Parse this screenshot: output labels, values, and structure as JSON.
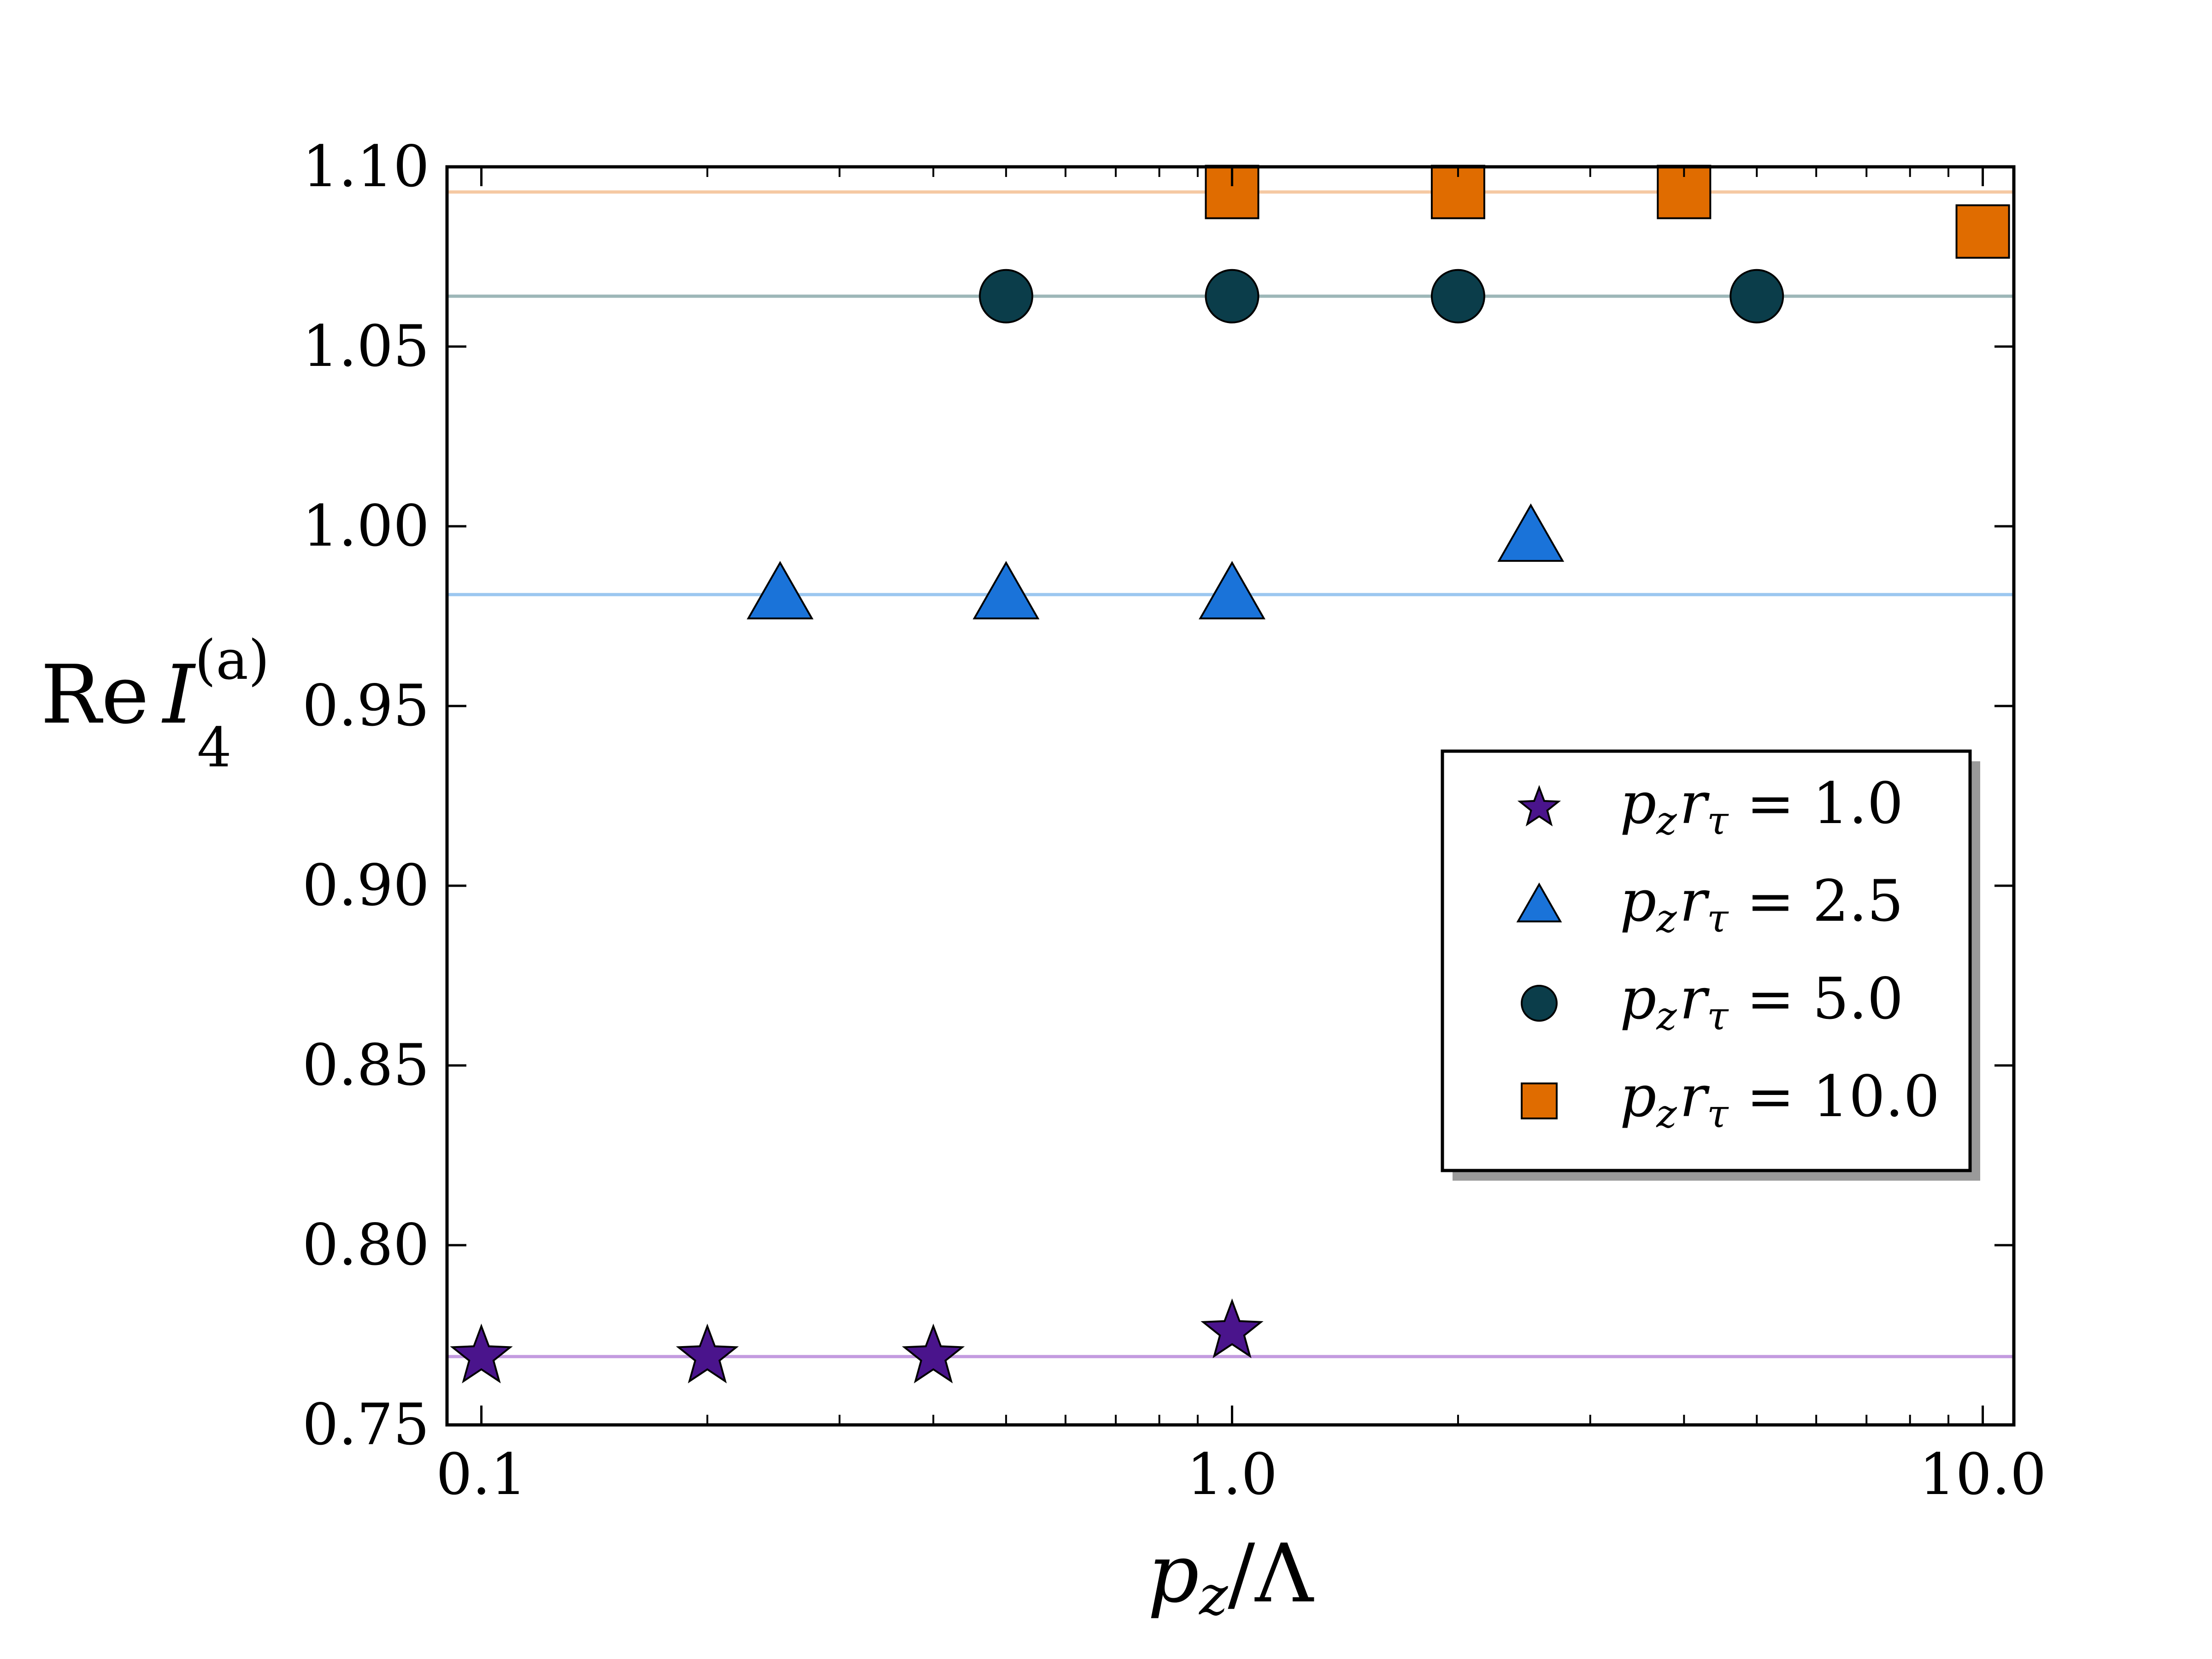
{
  "chart_data": {
    "type": "scatter",
    "x_scale": "log",
    "xlim": [
      0.09,
      11
    ],
    "ylim": [
      0.75,
      1.1
    ],
    "xlabel": {
      "main": "p",
      "sub": "z",
      "rest": "/Λ"
    },
    "ylabel": {
      "prefix": "Re",
      "main": "I",
      "sub": "4",
      "sup": "(a)"
    },
    "x_ticks": [
      {
        "value": 0.1,
        "label": "0.1"
      },
      {
        "value": 1.0,
        "label": "1.0"
      },
      {
        "value": 10.0,
        "label": "10.0"
      }
    ],
    "y_ticks": [
      {
        "value": 0.75,
        "label": "0.75"
      },
      {
        "value": 0.8,
        "label": "0.80"
      },
      {
        "value": 0.85,
        "label": "0.85"
      },
      {
        "value": 0.9,
        "label": "0.90"
      },
      {
        "value": 0.95,
        "label": "0.95"
      },
      {
        "value": 1.0,
        "label": "1.00"
      },
      {
        "value": 1.05,
        "label": "1.05"
      },
      {
        "value": 1.1,
        "label": "1.10"
      }
    ],
    "legend_position": "center-right",
    "series": [
      {
        "name": "p_z r_τ = 1.0",
        "label": {
          "var1": "p",
          "sub1": "z",
          "var2": "r",
          "sub2": "τ",
          "eq": " = 1.0"
        },
        "marker": "star",
        "color": "#4a148c",
        "reference": 0.769,
        "reference_color": "#c39be0",
        "points": [
          {
            "x": 0.1,
            "y": 0.769
          },
          {
            "x": 0.2,
            "y": 0.769
          },
          {
            "x": 0.4,
            "y": 0.769
          },
          {
            "x": 1.0,
            "y": 0.776
          }
        ]
      },
      {
        "name": "p_z r_τ = 2.5",
        "label": {
          "var1": "p",
          "sub1": "z",
          "var2": "r",
          "sub2": "τ",
          "eq": " = 2.5"
        },
        "marker": "triangle",
        "color": "#1a73d9",
        "reference": 0.981,
        "reference_color": "#9cc7f0",
        "points": [
          {
            "x": 0.25,
            "y": 0.981
          },
          {
            "x": 0.5,
            "y": 0.981
          },
          {
            "x": 1.0,
            "y": 0.981
          },
          {
            "x": 2.5,
            "y": 0.997
          }
        ]
      },
      {
        "name": "p_z r_τ = 5.0",
        "label": {
          "var1": "p",
          "sub1": "z",
          "var2": "r",
          "sub2": "τ",
          "eq": " = 5.0"
        },
        "marker": "circle",
        "color": "#0b3d4a",
        "reference": 1.064,
        "reference_color": "#9db7b8",
        "points": [
          {
            "x": 0.5,
            "y": 1.064
          },
          {
            "x": 1.0,
            "y": 1.064
          },
          {
            "x": 2.0,
            "y": 1.064
          },
          {
            "x": 5.0,
            "y": 1.064
          }
        ]
      },
      {
        "name": "p_z r_τ = 10.0",
        "label": {
          "var1": "p",
          "sub1": "z",
          "var2": "r",
          "sub2": "τ",
          "eq": " = 10.0"
        },
        "marker": "square",
        "color": "#e06c00",
        "reference": 1.093,
        "reference_color": "#f5c9a3",
        "points": [
          {
            "x": 1.0,
            "y": 1.093
          },
          {
            "x": 2.0,
            "y": 1.093
          },
          {
            "x": 4.0,
            "y": 1.093
          },
          {
            "x": 10.0,
            "y": 1.082
          }
        ]
      }
    ]
  }
}
